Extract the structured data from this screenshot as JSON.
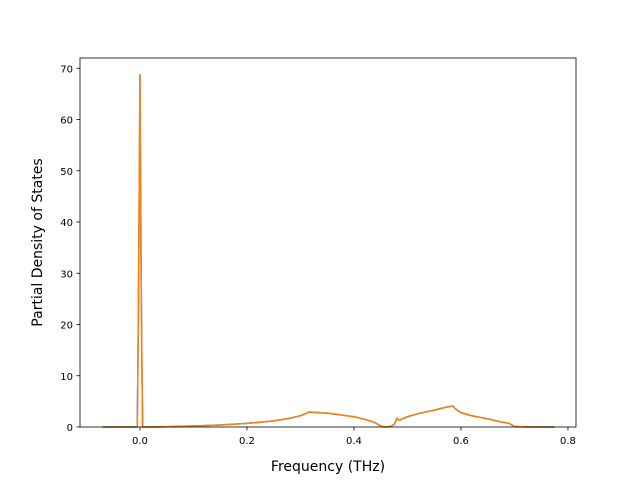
{
  "chart_data": {
    "type": "line",
    "title": "",
    "xlabel": "Frequency (THz)",
    "ylabel": "Partial Density of States",
    "xlim": [
      -0.112,
      0.815
    ],
    "ylim": [
      0,
      72
    ],
    "xticks": [
      0.0,
      0.2,
      0.4,
      0.6,
      0.8
    ],
    "xtick_labels": [
      "0.0",
      "0.2",
      "0.4",
      "0.6",
      "0.8"
    ],
    "yticks": [
      0,
      10,
      20,
      30,
      40,
      50,
      60,
      70
    ],
    "ytick_labels": [
      "0",
      "10",
      "20",
      "30",
      "40",
      "50",
      "60",
      "70"
    ],
    "grid": false,
    "legend": "none",
    "series": [
      {
        "color": "#1f77b4",
        "x": [
          -0.07,
          -0.005,
          -0.003,
          -0.001,
          0.0,
          0.001,
          0.003,
          0.005,
          0.02,
          0.05,
          0.1,
          0.15,
          0.2,
          0.25,
          0.28,
          0.3,
          0.31,
          0.315,
          0.32,
          0.35,
          0.38,
          0.4,
          0.42,
          0.43,
          0.44,
          0.45,
          0.455,
          0.46,
          0.465,
          0.47,
          0.475,
          0.478,
          0.48,
          0.485,
          0.49,
          0.5,
          0.52,
          0.55,
          0.57,
          0.58,
          0.585,
          0.59,
          0.6,
          0.62,
          0.65,
          0.67,
          0.69,
          0.7,
          0.72,
          0.75,
          0.775
        ],
        "y": [
          0,
          0,
          20,
          50,
          68.7,
          50,
          20,
          0,
          0,
          0.05,
          0.2,
          0.4,
          0.7,
          1.2,
          1.7,
          2.2,
          2.6,
          2.9,
          2.9,
          2.7,
          2.3,
          2.0,
          1.5,
          1.2,
          0.8,
          0.2,
          0.05,
          0.02,
          0.05,
          0.2,
          0.5,
          1.1,
          1.7,
          1.3,
          1.6,
          2.0,
          2.6,
          3.3,
          3.8,
          4.0,
          4.1,
          3.5,
          2.8,
          2.2,
          1.6,
          1.1,
          0.7,
          0.1,
          0.02,
          0.01,
          0
        ]
      },
      {
        "color": "#ff7f0e",
        "x": [
          -0.07,
          -0.005,
          -0.003,
          -0.001,
          0.0,
          0.001,
          0.003,
          0.005,
          0.02,
          0.05,
          0.1,
          0.15,
          0.2,
          0.25,
          0.28,
          0.3,
          0.31,
          0.315,
          0.32,
          0.35,
          0.38,
          0.4,
          0.42,
          0.43,
          0.44,
          0.45,
          0.455,
          0.46,
          0.465,
          0.47,
          0.475,
          0.478,
          0.48,
          0.485,
          0.49,
          0.5,
          0.52,
          0.55,
          0.57,
          0.58,
          0.585,
          0.59,
          0.6,
          0.62,
          0.65,
          0.67,
          0.69,
          0.7,
          0.72,
          0.75,
          0.775
        ],
        "y": [
          0,
          0,
          20,
          50,
          68.7,
          50,
          20,
          0,
          0,
          0.05,
          0.2,
          0.4,
          0.7,
          1.2,
          1.7,
          2.2,
          2.6,
          2.9,
          2.9,
          2.7,
          2.3,
          2.0,
          1.5,
          1.2,
          0.8,
          0.2,
          0.05,
          0.02,
          0.05,
          0.2,
          0.5,
          1.1,
          1.7,
          1.3,
          1.6,
          2.0,
          2.6,
          3.3,
          3.8,
          4.0,
          4.1,
          3.5,
          2.8,
          2.2,
          1.6,
          1.1,
          0.7,
          0.1,
          0.02,
          0.01,
          0
        ]
      }
    ]
  }
}
